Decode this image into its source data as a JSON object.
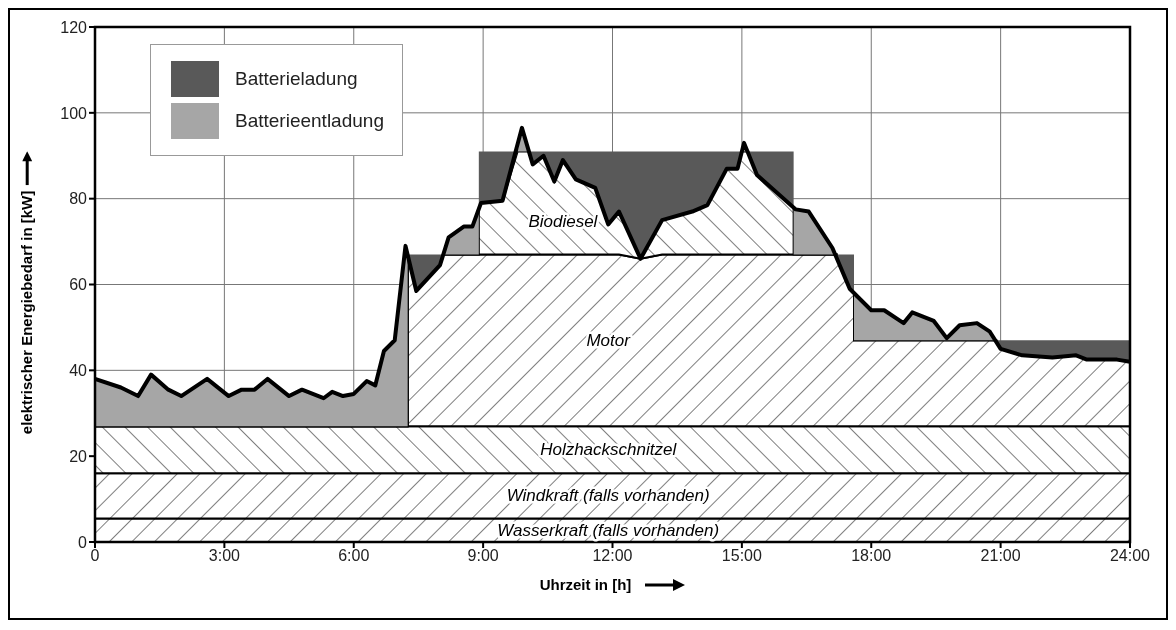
{
  "chart_data": {
    "type": "area",
    "stacked": true,
    "xlabel": "Uhrzeit in [h]",
    "ylabel": "elektrischer Energiebedarf in [kW]",
    "grid": true,
    "legend": "top left",
    "xlim": [
      0,
      24
    ],
    "xticks": [
      0,
      {
        "value": 3,
        "label": "3:00"
      },
      {
        "value": 6,
        "label": "6:00"
      },
      {
        "value": 9,
        "label": "9:00"
      },
      {
        "value": 12,
        "label": "12:00"
      },
      {
        "value": 15,
        "label": "15:00"
      },
      {
        "value": 18,
        "label": "18:00"
      },
      {
        "value": 21,
        "label": "21:00"
      },
      {
        "value": 24,
        "label": "24:00"
      }
    ],
    "ylim": [
      0,
      120
    ],
    "yticks": [
      0,
      20,
      40,
      60,
      80,
      100,
      120
    ],
    "x": [
      0,
      0.6,
      1,
      1.3,
      1.7,
      2,
      2.6,
      3.1,
      3.4,
      3.7,
      4,
      4.5,
      4.8,
      5.3,
      5.5,
      5.75,
      6,
      6.3,
      6.5,
      6.7,
      6.95,
      7.2,
      7.25,
      7.25,
      7.45,
      8,
      8.07,
      8.2,
      8.55,
      8.75,
      8.9,
      8.9,
      8.95,
      9.45,
      9.8,
      9.9,
      10.05,
      10.15,
      10.4,
      10.65,
      10.85,
      11.15,
      11.6,
      11.9,
      12.15,
      12.65,
      13.15,
      13.85,
      14.2,
      14.65,
      14.9,
      15.0,
      15.05,
      15.15,
      15.35,
      15.8,
      16.2,
      16.2,
      16.25,
      16.55,
      17.1,
      17.2,
      17.5,
      17.6,
      17.6,
      17.65,
      18,
      18.3,
      18.75,
      18.95,
      19.45,
      19.75,
      20.05,
      20.45,
      20.75,
      20.9,
      21,
      21.5,
      22.2,
      22.75,
      23,
      23.7,
      24
    ],
    "series": [
      {
        "name": "Wasserkraft (falls vorhanden)",
        "color": "#000000",
        "values": [
          5.5,
          5.5,
          5.5,
          5.5,
          5.5,
          5.5,
          5.5,
          5.5,
          5.5,
          5.5,
          5.5,
          5.5,
          5.5,
          5.5,
          5.5,
          5.5,
          5.5,
          5.5,
          5.5,
          5.5,
          5.5,
          5.5,
          5.5,
          5.5,
          5.5,
          5.5,
          5.5,
          5.5,
          5.5,
          5.5,
          5.5,
          5.5,
          5.5,
          5.5,
          5.5,
          5.5,
          5.5,
          5.5,
          5.5,
          5.5,
          5.5,
          5.5,
          5.5,
          5.5,
          5.5,
          5.5,
          5.5,
          5.5,
          5.5,
          5.5,
          5.5,
          5.5,
          5.5,
          5.5,
          5.5,
          5.5,
          5.5,
          5.5,
          5.5,
          5.5,
          5.5,
          5.5,
          5.5,
          5.5,
          5.5,
          5.5,
          5.5,
          5.5,
          5.5,
          5.5,
          5.5,
          5.5,
          5.5,
          5.5,
          5.5,
          5.5,
          5.5,
          5.5,
          5.5,
          5.5,
          5.5,
          5.5,
          5.5
        ]
      },
      {
        "name": "Windkraft (falls vorhanden)",
        "color": "#000000",
        "values": [
          10.5,
          10.5,
          10.5,
          10.5,
          10.5,
          10.5,
          10.5,
          10.5,
          10.5,
          10.5,
          10.5,
          10.5,
          10.5,
          10.5,
          10.5,
          10.5,
          10.5,
          10.5,
          10.5,
          10.5,
          10.5,
          10.5,
          10.5,
          10.5,
          10.5,
          10.5,
          10.5,
          10.5,
          10.5,
          10.5,
          10.5,
          10.5,
          10.5,
          10.5,
          10.5,
          10.5,
          10.5,
          10.5,
          10.5,
          10.5,
          10.5,
          10.5,
          10.5,
          10.5,
          10.5,
          10.5,
          10.5,
          10.5,
          10.5,
          10.5,
          10.5,
          10.5,
          10.5,
          10.5,
          10.5,
          10.5,
          10.5,
          10.5,
          10.5,
          10.5,
          10.5,
          10.5,
          10.5,
          10.5,
          10.5,
          10.5,
          10.5,
          10.5,
          10.5,
          10.5,
          10.5,
          10.5,
          10.5,
          10.5,
          10.5,
          10.5,
          10.5,
          10.5,
          10.5,
          10.5,
          10.5,
          10.5,
          10.5
        ]
      },
      {
        "name": "Holzhackschnitzel",
        "color": "#000000",
        "values": [
          11,
          11,
          11,
          11,
          11,
          11,
          11,
          11,
          11,
          11,
          11,
          11,
          11,
          11,
          11,
          11,
          11,
          11,
          11,
          11,
          11,
          11,
          11,
          11,
          11,
          11,
          11,
          11,
          11,
          11,
          11,
          11,
          11,
          11,
          11,
          11,
          11,
          11,
          11,
          11,
          11,
          11,
          11,
          11,
          11,
          11,
          11,
          11,
          11,
          11,
          11,
          11,
          11,
          11,
          11,
          11,
          11,
          11,
          11,
          11,
          11,
          11,
          11,
          11,
          11,
          11,
          11,
          11,
          11,
          11,
          11,
          11,
          11,
          11,
          11,
          11,
          11,
          11,
          11,
          11,
          11,
          11,
          11
        ]
      },
      {
        "name": "Motor",
        "color": "#000000",
        "values": [
          0,
          0,
          0,
          0,
          0,
          0,
          0,
          0,
          0,
          0,
          0,
          0,
          0,
          0,
          0,
          0,
          0,
          0,
          0,
          0,
          0,
          0,
          0,
          40,
          31.5,
          37.5,
          40,
          40,
          40,
          40,
          40,
          40,
          40,
          40,
          40,
          40,
          40,
          40,
          40,
          40,
          40,
          40,
          40,
          40,
          40,
          39,
          40,
          40,
          40,
          40,
          40,
          40,
          40,
          40,
          40,
          40,
          40,
          40,
          40,
          40,
          40,
          40,
          32,
          31,
          20,
          20,
          20,
          20,
          20,
          20,
          20,
          20,
          20,
          20,
          20,
          20,
          18,
          16.5,
          16,
          16.5,
          15.5,
          15.5,
          15
        ]
      },
      {
        "name": "Biodiesel",
        "color": "#000000",
        "values": [
          0,
          0,
          0,
          0,
          0,
          0,
          0,
          0,
          0,
          0,
          0,
          0,
          0,
          0,
          0,
          0,
          0,
          0,
          0,
          0,
          0,
          0,
          0,
          0,
          0,
          0,
          0,
          0,
          0,
          0,
          0,
          10.5,
          12,
          12.5,
          24,
          24,
          24,
          21,
          23,
          17,
          22,
          17.5,
          15.5,
          7,
          10,
          0,
          8,
          10,
          11.5,
          20,
          20,
          24,
          24,
          24,
          18.5,
          14.5,
          11,
          0,
          0,
          0,
          0,
          0,
          0,
          0,
          0,
          0,
          0,
          0,
          0,
          0,
          0,
          0,
          0,
          0,
          0,
          0,
          0,
          0,
          0,
          0,
          0,
          0,
          0
        ]
      },
      {
        "name": "Batterieladung",
        "color": "#595959",
        "values": [
          null,
          null,
          null,
          null,
          null,
          null,
          null,
          null,
          null,
          null,
          null,
          null,
          null,
          null,
          null,
          null,
          null,
          null,
          null,
          null,
          null,
          null,
          null,
          0,
          8.5,
          2.5,
          0,
          null,
          null,
          null,
          0,
          13.5,
          12,
          11.5,
          0,
          null,
          0,
          3,
          1,
          7,
          2,
          6.5,
          8.5,
          17,
          14,
          25,
          16,
          14,
          12.5,
          4,
          4,
          0,
          null,
          0,
          5.5,
          9.5,
          13,
          0,
          null,
          null,
          null,
          0,
          8,
          9,
          0,
          null,
          null,
          null,
          null,
          null,
          null,
          null,
          null,
          null,
          null,
          0,
          2,
          3.5,
          4,
          3.5,
          4.5,
          4.5,
          5
        ]
      },
      {
        "name": "Batterieentladung",
        "color": "#a6a6a6",
        "values": [
          11,
          9,
          7,
          12,
          8.5,
          7,
          11,
          7,
          8.5,
          8.5,
          11,
          7,
          8.5,
          6.5,
          8,
          7,
          7.5,
          10.5,
          9.5,
          17.5,
          20,
          42,
          40,
          0,
          null,
          null,
          0,
          4,
          6.5,
          6.5,
          10.5,
          0,
          null,
          null,
          0,
          5.5,
          0,
          null,
          null,
          null,
          null,
          null,
          null,
          null,
          null,
          null,
          null,
          null,
          null,
          null,
          null,
          0,
          2,
          0,
          null,
          null,
          0,
          11,
          10.5,
          10,
          1.5,
          0,
          null,
          0,
          11,
          10.5,
          7,
          7,
          4,
          6.5,
          4.5,
          0.5,
          3.5,
          4,
          2,
          0,
          null,
          null,
          null,
          null,
          null,
          null,
          null
        ]
      },
      {
        "type": "line",
        "color": "#000000",
        "x": [
          0,
          0.6,
          1,
          1.3,
          1.7,
          2,
          2.6,
          3.1,
          3.4,
          3.7,
          4,
          4.5,
          4.8,
          5.3,
          5.5,
          5.75,
          6,
          6.3,
          6.5,
          6.7,
          6.95,
          7.2,
          7.45,
          8,
          8.2,
          8.55,
          8.75,
          8.95,
          9.45,
          9.9,
          10.15,
          10.4,
          10.65,
          10.85,
          11.15,
          11.6,
          11.9,
          12.15,
          12.65,
          13.15,
          13.85,
          14.2,
          14.65,
          14.9,
          15.05,
          15.35,
          15.8,
          16.25,
          16.55,
          17.1,
          17.5,
          17.65,
          18,
          18.3,
          18.75,
          18.95,
          19.45,
          19.75,
          20.05,
          20.45,
          20.75,
          21,
          21.5,
          22.2,
          22.75,
          23,
          23.7,
          24
        ],
        "values": [
          38,
          36,
          34,
          39,
          35.5,
          34,
          38,
          34,
          35.5,
          35.5,
          38,
          34,
          35.5,
          33.5,
          35,
          34,
          34.5,
          37.5,
          36.5,
          44.5,
          47,
          69,
          58.5,
          64.5,
          71,
          73.5,
          73.5,
          79,
          79.5,
          96.5,
          88,
          90,
          84,
          89,
          84.5,
          82.5,
          74,
          77,
          66,
          75,
          77,
          78.5,
          87,
          87,
          93,
          85.5,
          81.5,
          77.5,
          77,
          68.5,
          59,
          57.5,
          54,
          54,
          51,
          53.5,
          51.5,
          47.5,
          50.5,
          51,
          49,
          45,
          43.5,
          43,
          43.5,
          42.5,
          42.5,
          42
        ]
      }
    ]
  }
}
